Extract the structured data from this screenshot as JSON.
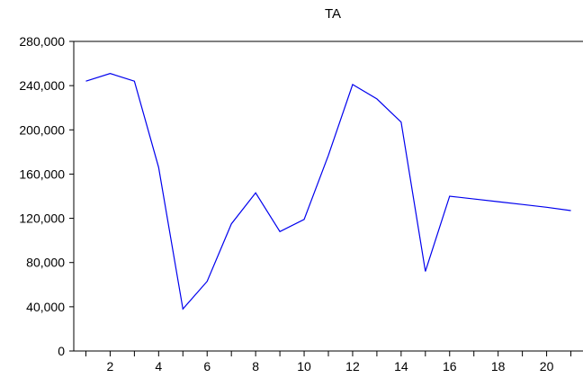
{
  "chart_data": {
    "type": "line",
    "title": "TA",
    "xlabel": "",
    "ylabel": "",
    "x": [
      1,
      2,
      3,
      4,
      5,
      6,
      7,
      8,
      9,
      10,
      11,
      12,
      13,
      14,
      15,
      16,
      17,
      18,
      19,
      20,
      21
    ],
    "series": [
      {
        "values": [
          244000,
          251000,
          244000,
          166000,
          38000,
          63000,
          115000,
          143000,
          108000,
          119000,
          177000,
          241000,
          228000,
          207000,
          72000,
          140000,
          137500,
          135000,
          132500,
          130000,
          127000
        ]
      }
    ],
    "xlim": [
      0.5,
      21.5
    ],
    "ylim": [
      0,
      280000
    ],
    "y_ticks": [
      0,
      40000,
      80000,
      120000,
      160000,
      200000,
      240000,
      280000
    ],
    "y_tick_labels": [
      "0",
      "40,000",
      "80,000",
      "120,000",
      "160,000",
      "200,000",
      "240,000",
      "280,000"
    ],
    "x_tick_labels": [
      {
        "x": 2,
        "label": "2"
      },
      {
        "x": 4,
        "label": "4"
      },
      {
        "x": 6,
        "label": "6"
      },
      {
        "x": 8,
        "label": "8"
      },
      {
        "x": 10,
        "label": "10"
      },
      {
        "x": 12,
        "label": "12"
      },
      {
        "x": 14,
        "label": "14"
      },
      {
        "x": 16,
        "label": "16"
      },
      {
        "x": 18,
        "label": "18"
      },
      {
        "x": 20,
        "label": "20"
      }
    ],
    "grid": false,
    "line_color": "#0000ee",
    "axis_color": "#000000"
  }
}
